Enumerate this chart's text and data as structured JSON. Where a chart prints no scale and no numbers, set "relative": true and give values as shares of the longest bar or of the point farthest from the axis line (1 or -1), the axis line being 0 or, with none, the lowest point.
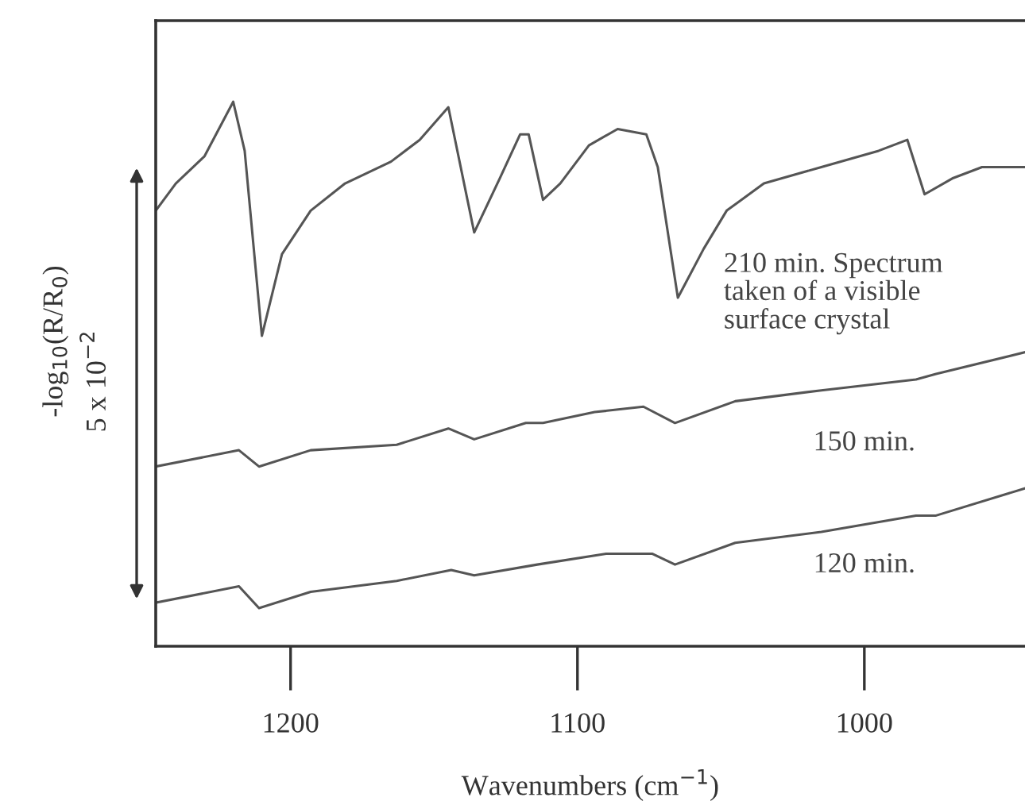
{
  "chart_data": {
    "type": "line",
    "relative": true,
    "xlabel": "Wavenumbers (cm$^{−1}$)",
    "ylabel": "-log$_{10}$(R/R$_{0}$)",
    "xlim": [
      1247,
      944
    ],
    "xticks": [
      1200,
      1100,
      1000
    ],
    "grid": false,
    "legend": false,
    "marker": "none",
    "line_style": "solid",
    "annotations": [
      "5 x 10$^{−2}$"
    ],
    "series": [
      {
        "name": "210 min. Spectrum\ntaken of a visible\nsurface crystal",
        "color": "#555555",
        "x": [
          1247,
          1240,
          1230,
          1220,
          1216,
          1210,
          1203,
          1193,
          1181,
          1165,
          1155,
          1145,
          1136,
          1127,
          1120,
          1117,
          1112,
          1106,
          1096,
          1086,
          1076,
          1072,
          1065,
          1056,
          1048,
          1035,
          1015,
          995,
          985,
          979,
          969,
          959,
          944
        ],
        "values": [
          0.8,
          0.85,
          0.9,
          1.0,
          0.91,
          0.57,
          0.72,
          0.8,
          0.85,
          0.89,
          0.93,
          0.99,
          0.76,
          0.86,
          0.94,
          0.94,
          0.82,
          0.85,
          0.92,
          0.95,
          0.94,
          0.88,
          0.64,
          0.73,
          0.8,
          0.85,
          0.88,
          0.91,
          0.93,
          0.83,
          0.86,
          0.88,
          0.88
        ]
      },
      {
        "name": "150 min.",
        "color": "#555555",
        "x": [
          1247,
          1218,
          1211,
          1193,
          1163,
          1145,
          1136,
          1118,
          1112,
          1094,
          1077,
          1066,
          1045,
          1015,
          982,
          975,
          944
        ],
        "values": [
          0.33,
          0.36,
          0.33,
          0.36,
          0.37,
          0.4,
          0.38,
          0.41,
          0.41,
          0.43,
          0.44,
          0.41,
          0.45,
          0.47,
          0.49,
          0.5,
          0.54
        ]
      },
      {
        "name": "120 min.",
        "color": "#555555",
        "x": [
          1247,
          1218,
          1211,
          1193,
          1163,
          1144,
          1136,
          1114,
          1090,
          1074,
          1066,
          1045,
          1015,
          982,
          975,
          944
        ],
        "values": [
          0.08,
          0.11,
          0.07,
          0.1,
          0.12,
          0.14,
          0.13,
          0.15,
          0.17,
          0.17,
          0.15,
          0.19,
          0.21,
          0.24,
          0.24,
          0.29
        ]
      }
    ]
  }
}
